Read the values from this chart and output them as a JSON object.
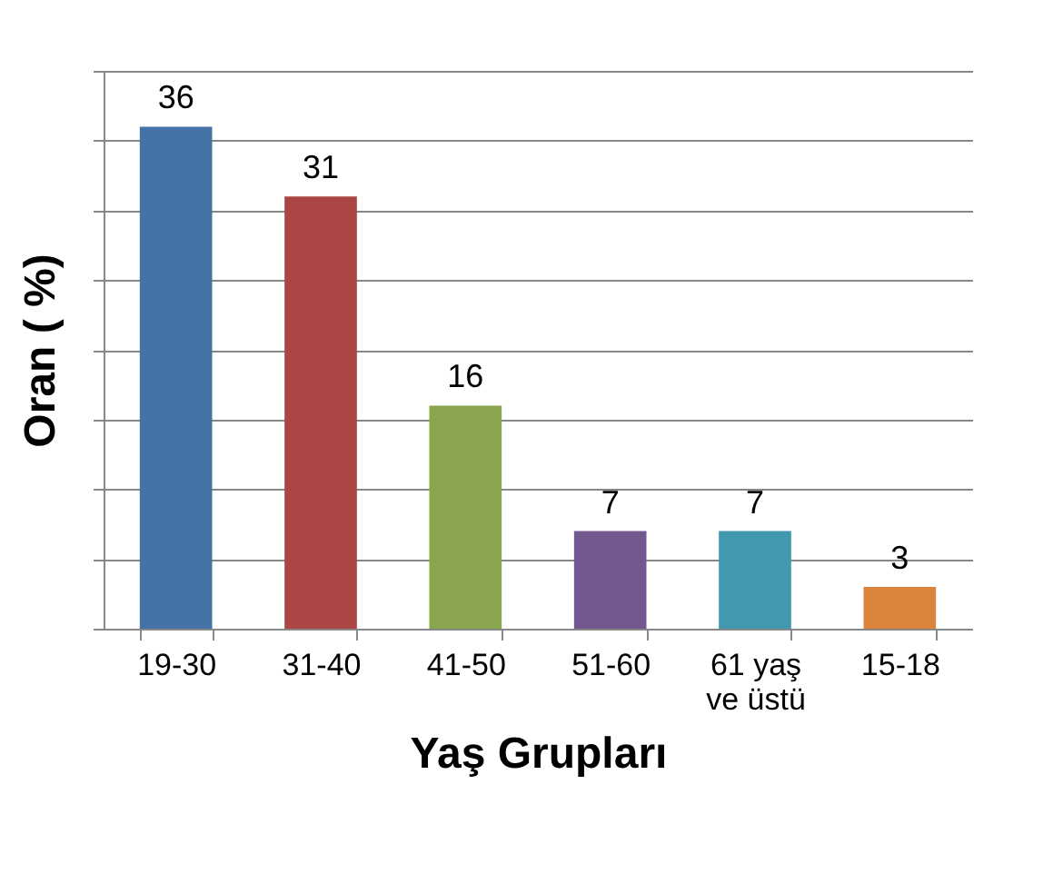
{
  "chart_data": {
    "type": "bar",
    "xlabel": "Yaş Grupları",
    "ylabel": "Oran  ( %)",
    "categories": [
      "19-30",
      "31-40",
      "41-50",
      "51-60",
      "61 yaş ve üstü",
      "15-18"
    ],
    "values": [
      36,
      31,
      16,
      7,
      7,
      3
    ],
    "colors": [
      "#4572a7",
      "#aa4643",
      "#89a54e",
      "#71588f",
      "#4198af",
      "#db843d"
    ],
    "ylim": [
      0,
      40
    ],
    "yticks": [
      {
        "value": 0,
        "label": null
      },
      {
        "value": 5,
        "label": null
      },
      {
        "value": 10,
        "label": null
      },
      {
        "value": 15,
        "label": null
      },
      {
        "value": 20,
        "label": null
      },
      {
        "value": 25,
        "label": null
      },
      {
        "value": 30,
        "label": null
      },
      {
        "value": 35,
        "label": null
      },
      {
        "value": 40,
        "label": null
      }
    ],
    "grid": "y",
    "tick_labels": "x",
    "data_labels": true
  }
}
